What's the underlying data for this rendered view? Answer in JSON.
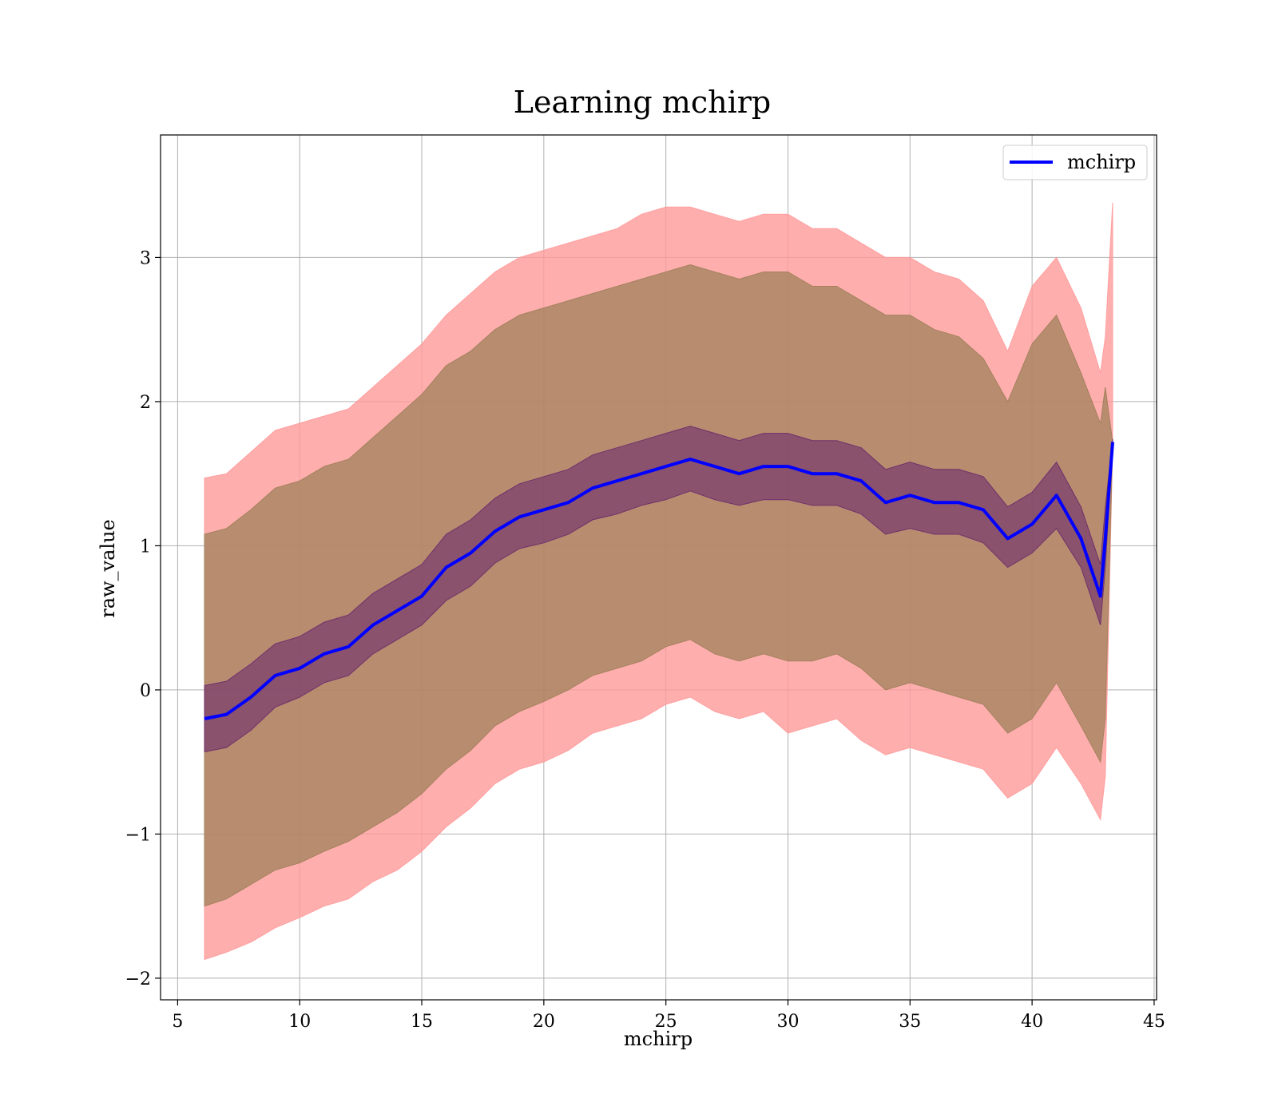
{
  "chart_data": {
    "type": "line",
    "title": "Learning mchirp",
    "xlabel": "mchirp",
    "ylabel": "raw_value",
    "xlim": [
      4.3,
      45.1
    ],
    "ylim": [
      -2.15,
      3.85
    ],
    "xticks": [
      5,
      10,
      15,
      20,
      25,
      30,
      35,
      40,
      45
    ],
    "yticks": [
      -2,
      -1,
      0,
      1,
      2,
      3
    ],
    "xtick_labels": [
      "5",
      "10",
      "15",
      "20",
      "25",
      "30",
      "35",
      "40",
      "45"
    ],
    "ytick_labels": [
      "−2",
      "−1",
      "0",
      "1",
      "2",
      "3"
    ],
    "grid": true,
    "legend": {
      "position": "top-right",
      "entries": [
        "mchirp"
      ]
    },
    "colors": {
      "mean_line": "#0000ff",
      "outer_band": "#ff9a9a",
      "middle_band": "#a0805a",
      "inner_band": "#6b2b6b"
    },
    "series": [
      {
        "name": "mchirp",
        "x": [
          6.1,
          7.0,
          8.0,
          9.0,
          10.0,
          11.0,
          12.0,
          13.0,
          14.0,
          15.0,
          16.0,
          17.0,
          18.0,
          19.0,
          20.0,
          21.0,
          22.0,
          23.0,
          24.0,
          25.0,
          26.0,
          27.0,
          28.0,
          29.0,
          30.0,
          31.0,
          32.0,
          33.0,
          34.0,
          35.0,
          36.0,
          37.0,
          38.0,
          39.0,
          40.0,
          41.0,
          42.0,
          42.8,
          43.0,
          43.3
        ],
        "y": [
          -0.2,
          -0.17,
          -0.05,
          0.1,
          0.15,
          0.25,
          0.3,
          0.45,
          0.55,
          0.65,
          0.85,
          0.95,
          1.1,
          1.2,
          1.25,
          1.3,
          1.4,
          1.45,
          1.5,
          1.55,
          1.6,
          1.55,
          1.5,
          1.55,
          1.55,
          1.5,
          1.5,
          1.45,
          1.3,
          1.35,
          1.3,
          1.3,
          1.25,
          1.05,
          1.15,
          1.35,
          1.05,
          0.65,
          1.05,
          1.72
        ]
      }
    ],
    "bands": [
      {
        "x": [
          6.1,
          7.0,
          8.0,
          9.0,
          10.0,
          11.0,
          12.0,
          13.0,
          14.0,
          15.0,
          16.0,
          17.0,
          18.0,
          19.0,
          20.0,
          21.0,
          22.0,
          23.0,
          24.0,
          25.0,
          26.0,
          27.0,
          28.0,
          29.0,
          30.0,
          31.0,
          32.0,
          33.0,
          34.0,
          35.0,
          36.0,
          37.0,
          38.0,
          39.0,
          40.0,
          41.0,
          42.0,
          42.8,
          43.0,
          43.3
        ],
        "lower": [
          -1.87,
          -1.82,
          -1.75,
          -1.65,
          -1.58,
          -1.5,
          -1.45,
          -1.33,
          -1.25,
          -1.12,
          -0.95,
          -0.82,
          -0.65,
          -0.55,
          -0.5,
          -0.42,
          -0.3,
          -0.25,
          -0.2,
          -0.1,
          -0.05,
          -0.15,
          -0.2,
          -0.15,
          -0.3,
          -0.25,
          -0.2,
          -0.35,
          -0.45,
          -0.4,
          -0.45,
          -0.5,
          -0.55,
          -0.75,
          -0.65,
          -0.4,
          -0.65,
          -0.9,
          -0.6,
          1.7
        ],
        "upper": [
          1.47,
          1.5,
          1.65,
          1.8,
          1.85,
          1.9,
          1.95,
          2.1,
          2.25,
          2.4,
          2.6,
          2.75,
          2.9,
          3.0,
          3.05,
          3.1,
          3.15,
          3.2,
          3.3,
          3.35,
          3.35,
          3.3,
          3.25,
          3.3,
          3.3,
          3.2,
          3.2,
          3.1,
          3.0,
          3.0,
          2.9,
          2.85,
          2.7,
          2.35,
          2.8,
          3.0,
          2.65,
          2.2,
          2.45,
          3.38
        ]
      },
      {
        "x": [
          6.1,
          7.0,
          8.0,
          9.0,
          10.0,
          11.0,
          12.0,
          13.0,
          14.0,
          15.0,
          16.0,
          17.0,
          18.0,
          19.0,
          20.0,
          21.0,
          22.0,
          23.0,
          24.0,
          25.0,
          26.0,
          27.0,
          28.0,
          29.0,
          30.0,
          31.0,
          32.0,
          33.0,
          34.0,
          35.0,
          36.0,
          37.0,
          38.0,
          39.0,
          40.0,
          41.0,
          42.0,
          42.8,
          43.0,
          43.3
        ],
        "lower": [
          -1.5,
          -1.45,
          -1.35,
          -1.25,
          -1.2,
          -1.12,
          -1.05,
          -0.95,
          -0.85,
          -0.72,
          -0.55,
          -0.42,
          -0.25,
          -0.15,
          -0.08,
          0.0,
          0.1,
          0.15,
          0.2,
          0.3,
          0.35,
          0.25,
          0.2,
          0.25,
          0.2,
          0.2,
          0.25,
          0.15,
          0.0,
          0.05,
          0.0,
          -0.05,
          -0.1,
          -0.3,
          -0.2,
          0.05,
          -0.25,
          -0.5,
          -0.2,
          1.7
        ],
        "upper": [
          1.08,
          1.12,
          1.25,
          1.4,
          1.45,
          1.55,
          1.6,
          1.75,
          1.9,
          2.05,
          2.25,
          2.35,
          2.5,
          2.6,
          2.65,
          2.7,
          2.75,
          2.8,
          2.85,
          2.9,
          2.95,
          2.9,
          2.85,
          2.9,
          2.9,
          2.8,
          2.8,
          2.7,
          2.6,
          2.6,
          2.5,
          2.45,
          2.3,
          2.0,
          2.4,
          2.6,
          2.2,
          1.85,
          2.1,
          1.72
        ]
      },
      {
        "x": [
          6.1,
          7.0,
          8.0,
          9.0,
          10.0,
          11.0,
          12.0,
          13.0,
          14.0,
          15.0,
          16.0,
          17.0,
          18.0,
          19.0,
          20.0,
          21.0,
          22.0,
          23.0,
          24.0,
          25.0,
          26.0,
          27.0,
          28.0,
          29.0,
          30.0,
          31.0,
          32.0,
          33.0,
          34.0,
          35.0,
          36.0,
          37.0,
          38.0,
          39.0,
          40.0,
          41.0,
          42.0,
          42.8,
          43.0,
          43.3
        ],
        "lower": [
          -0.43,
          -0.4,
          -0.28,
          -0.12,
          -0.05,
          0.05,
          0.1,
          0.25,
          0.35,
          0.45,
          0.62,
          0.72,
          0.88,
          0.98,
          1.02,
          1.08,
          1.18,
          1.22,
          1.28,
          1.32,
          1.38,
          1.32,
          1.28,
          1.32,
          1.32,
          1.28,
          1.28,
          1.22,
          1.08,
          1.12,
          1.08,
          1.08,
          1.02,
          0.85,
          0.95,
          1.12,
          0.85,
          0.45,
          0.85,
          1.7
        ],
        "upper": [
          0.03,
          0.06,
          0.18,
          0.32,
          0.37,
          0.47,
          0.52,
          0.67,
          0.77,
          0.87,
          1.08,
          1.18,
          1.33,
          1.43,
          1.48,
          1.53,
          1.63,
          1.68,
          1.73,
          1.78,
          1.83,
          1.78,
          1.73,
          1.78,
          1.78,
          1.73,
          1.73,
          1.68,
          1.53,
          1.58,
          1.53,
          1.53,
          1.48,
          1.27,
          1.37,
          1.58,
          1.27,
          0.87,
          1.27,
          1.74
        ]
      }
    ]
  }
}
